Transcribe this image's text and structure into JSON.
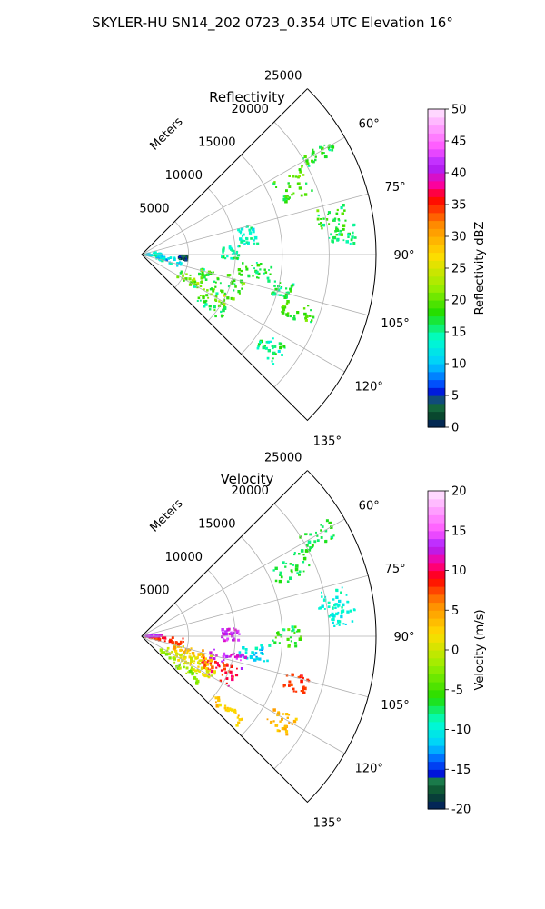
{
  "figure": {
    "suptitle": "SKYLER-HU  SN14_202  0723_0.354 UTC Elevation 16°",
    "range_unit_label": "Meters"
  },
  "chart_data": [
    {
      "type": "heatmap",
      "title": "Reflectivity",
      "projection": "polar sector",
      "azimuth_range_deg": [
        45,
        135
      ],
      "range_max_m": 25000,
      "range_ticks": [
        5000,
        10000,
        15000,
        20000,
        25000
      ],
      "azimuth_ticks_deg": [
        60,
        75,
        90,
        105,
        120,
        135
      ],
      "grid": true,
      "colorbar": {
        "label": "Reflectivity dBZ",
        "range": [
          0,
          50
        ],
        "ticks": [
          0,
          5,
          10,
          15,
          20,
          25,
          30,
          35,
          40,
          45,
          50
        ],
        "stops": [
          {
            "v": 0,
            "c": "#001a66"
          },
          {
            "v": 2,
            "c": "#0a4a2a"
          },
          {
            "v": 4,
            "c": "#1a7a4a"
          },
          {
            "v": 5,
            "c": "#0000cc"
          },
          {
            "v": 7,
            "c": "#0055ff"
          },
          {
            "v": 10,
            "c": "#00ccff"
          },
          {
            "v": 14,
            "c": "#00ffcc"
          },
          {
            "v": 18,
            "c": "#22dd00"
          },
          {
            "v": 22,
            "c": "#99ee00"
          },
          {
            "v": 27,
            "c": "#ffdd00"
          },
          {
            "v": 32,
            "c": "#ff8800"
          },
          {
            "v": 36,
            "c": "#ff0000"
          },
          {
            "v": 38,
            "c": "#ff0099"
          },
          {
            "v": 41,
            "c": "#aa22ff"
          },
          {
            "v": 44,
            "c": "#ff55ff"
          },
          {
            "v": 50,
            "c": "#ffe6ff"
          }
        ]
      },
      "echo_regions": [
        {
          "az": [
            58,
            63
          ],
          "r": [
            19500,
            23500
          ],
          "value": 17,
          "spread": 4
        },
        {
          "az": [
            61,
            70
          ],
          "r": [
            15500,
            19500
          ],
          "value": 19,
          "spread": 4
        },
        {
          "az": [
            76,
            82
          ],
          "r": [
            19000,
            22500
          ],
          "value": 18,
          "spread": 4
        },
        {
          "az": [
            82,
            87
          ],
          "r": [
            20000,
            23000
          ],
          "value": 16,
          "spread": 4
        },
        {
          "az": [
            85,
            93
          ],
          "r": [
            8500,
            10500
          ],
          "value": 15,
          "spread": 4
        },
        {
          "az": [
            75,
            85
          ],
          "r": [
            10500,
            12500
          ],
          "value": 14,
          "spread": 3
        },
        {
          "az": [
            94,
            102
          ],
          "r": [
            10500,
            14000
          ],
          "value": 17,
          "spread": 4
        },
        {
          "az": [
            103,
            112
          ],
          "r": [
            6500,
            11500
          ],
          "value": 18,
          "spread": 5
        },
        {
          "az": [
            113,
            122
          ],
          "r": [
            4500,
            11000
          ],
          "value": 20,
          "spread": 6
        },
        {
          "az": [
            122,
            130
          ],
          "r": [
            7500,
            11000
          ],
          "value": 18,
          "spread": 4
        },
        {
          "az": [
            95,
            108
          ],
          "r": [
            1500,
            4500
          ],
          "value": 11,
          "spread": 5
        },
        {
          "az": [
            82,
            98
          ],
          "r": [
            300,
            2200
          ],
          "value": 13,
          "spread": 4
        },
        {
          "az": [
            92,
            97
          ],
          "r": [
            4000,
            5000
          ],
          "value": 3,
          "spread": 3
        },
        {
          "az": [
            101,
            107
          ],
          "r": [
            14500,
            16500
          ],
          "value": 16,
          "spread": 4
        },
        {
          "az": [
            107,
            113
          ],
          "r": [
            16000,
            19500
          ],
          "value": 18,
          "spread": 4
        },
        {
          "az": [
            122,
            130
          ],
          "r": [
            15500,
            18500
          ],
          "value": 15,
          "spread": 4
        }
      ]
    },
    {
      "type": "heatmap",
      "title": "Velocity",
      "projection": "polar sector",
      "azimuth_range_deg": [
        45,
        135
      ],
      "range_max_m": 25000,
      "range_ticks": [
        5000,
        10000,
        15000,
        20000,
        25000
      ],
      "azimuth_ticks_deg": [
        60,
        75,
        90,
        105,
        120,
        135
      ],
      "grid": true,
      "colorbar": {
        "label": "Velocity (m/s)",
        "range": [
          -20,
          20
        ],
        "ticks": [
          -20,
          -15,
          -10,
          -5,
          0,
          5,
          10,
          15,
          20
        ],
        "stops": [
          {
            "v": -20,
            "c": "#001a66"
          },
          {
            "v": -18,
            "c": "#0a4a2a"
          },
          {
            "v": -16.5,
            "c": "#1a7a4a"
          },
          {
            "v": -16,
            "c": "#0000cc"
          },
          {
            "v": -14,
            "c": "#0055ff"
          },
          {
            "v": -12,
            "c": "#00ccff"
          },
          {
            "v": -9,
            "c": "#00ffcc"
          },
          {
            "v": -6,
            "c": "#22dd00"
          },
          {
            "v": -2,
            "c": "#99ee00"
          },
          {
            "v": 2,
            "c": "#ffdd00"
          },
          {
            "v": 6,
            "c": "#ff8800"
          },
          {
            "v": 9,
            "c": "#ff0000"
          },
          {
            "v": 11,
            "c": "#ff0099"
          },
          {
            "v": 13,
            "c": "#aa22ff"
          },
          {
            "v": 15,
            "c": "#ff55ff"
          },
          {
            "v": 20,
            "c": "#ffe6ff"
          }
        ]
      },
      "echo_regions": [
        {
          "az": [
            58,
            63
          ],
          "r": [
            19500,
            23500
          ],
          "value": -7,
          "spread": 2
        },
        {
          "az": [
            61,
            70
          ],
          "r": [
            15500,
            19500
          ],
          "value": -7,
          "spread": 2
        },
        {
          "az": [
            76,
            82
          ],
          "r": [
            19000,
            22500
          ],
          "value": -9,
          "spread": 2
        },
        {
          "az": [
            82,
            87
          ],
          "r": [
            20000,
            23000
          ],
          "value": -10,
          "spread": 2
        },
        {
          "az": [
            85,
            93
          ],
          "r": [
            8500,
            10500
          ],
          "value": 13,
          "spread": 2
        },
        {
          "az": [
            86,
            94
          ],
          "r": [
            14000,
            17000
          ],
          "value": -6,
          "spread": 3
        },
        {
          "az": [
            94,
            102
          ],
          "r": [
            10500,
            14000
          ],
          "value": -11,
          "spread": 3
        },
        {
          "az": [
            100,
            108
          ],
          "r": [
            7500,
            11500
          ],
          "value": 13,
          "spread": 2
        },
        {
          "az": [
            108,
            120
          ],
          "r": [
            7000,
            11000
          ],
          "value": 9,
          "spread": 3
        },
        {
          "az": [
            103,
            114
          ],
          "r": [
            3500,
            8000
          ],
          "value": 3,
          "spread": 3
        },
        {
          "az": [
            114,
            124
          ],
          "r": [
            3000,
            9000
          ],
          "value": 1,
          "spread": 3
        },
        {
          "az": [
            124,
            131
          ],
          "r": [
            2500,
            8000
          ],
          "value": -2,
          "spread": 3
        },
        {
          "az": [
            92,
            102
          ],
          "r": [
            300,
            4500
          ],
          "value": 8,
          "spread": 2
        },
        {
          "az": [
            85,
            92
          ],
          "r": [
            300,
            2200
          ],
          "value": 13,
          "spread": 2
        },
        {
          "az": [
            118,
            125
          ],
          "r": [
            16000,
            19000
          ],
          "value": 4,
          "spread": 2
        },
        {
          "az": [
            104,
            110
          ],
          "r": [
            16000,
            18500
          ],
          "value": 8,
          "spread": 2
        },
        {
          "az": [
            128,
            133
          ],
          "r": [
            10000,
            14000
          ],
          "value": 3,
          "spread": 2
        }
      ]
    }
  ]
}
